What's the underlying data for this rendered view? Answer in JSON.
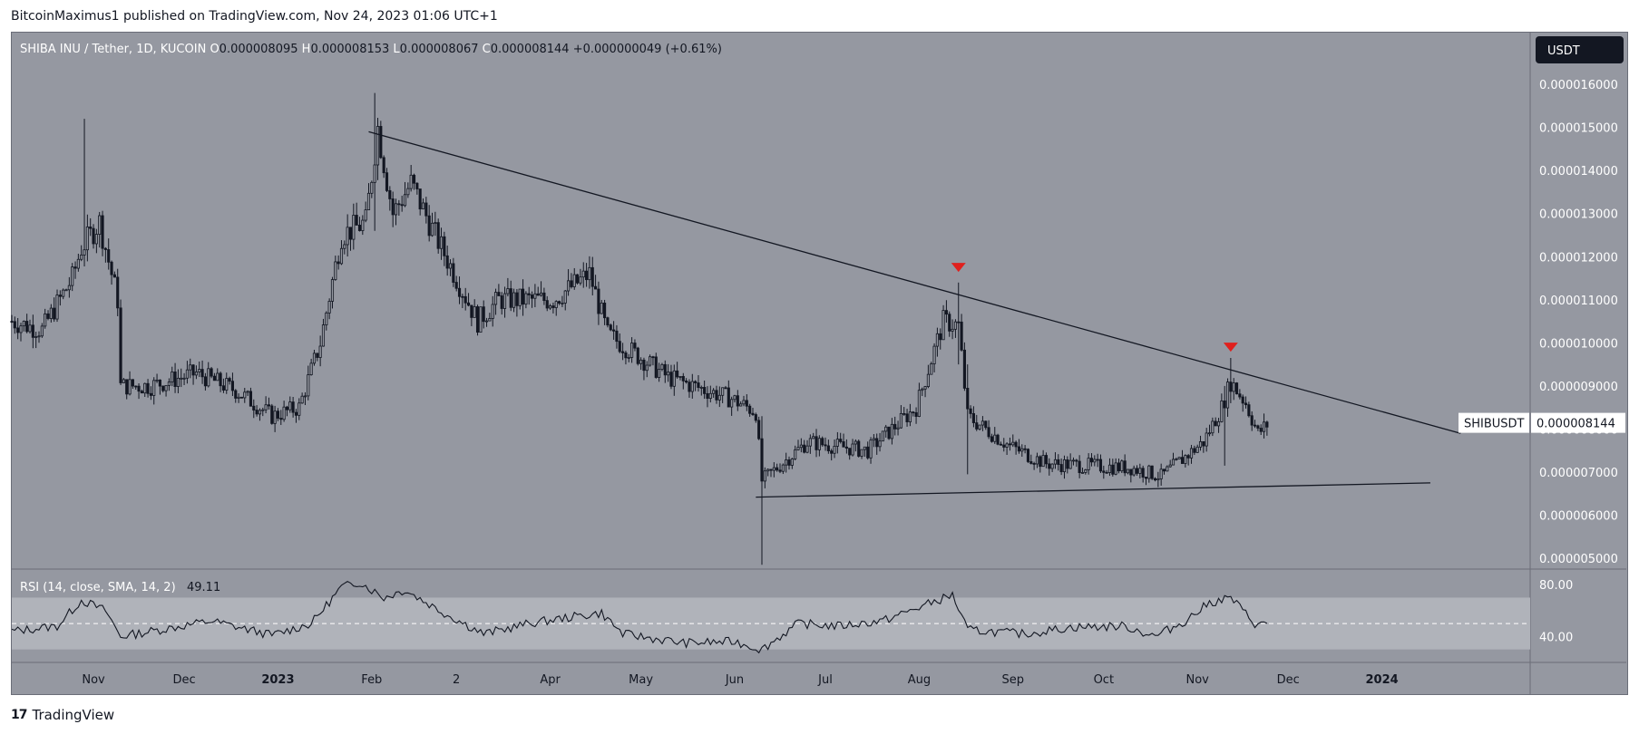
{
  "header": {
    "published": "BitcoinMaximus1 published on TradingView.com, Nov 24, 2023 01:06 UTC+1"
  },
  "legend": {
    "symbol": "SHIBA INU / Tether, 1D, KUCOIN",
    "o_label": "O",
    "o_value": "0.000008095",
    "h_label": "H",
    "h_value": "0.000008153",
    "l_label": "L",
    "l_value": "0.000008067",
    "c_label": "C",
    "c_value": "0.000008144",
    "change": "+0.000000049 (+0.61%)"
  },
  "currency_button": "USDT",
  "price_tag": {
    "symbol": "SHIBUSDT",
    "value": "0.000008144"
  },
  "rsi": {
    "label": "RSI (14, close, SMA, 14, 2)",
    "value": "49.11",
    "ticks": [
      "80.00",
      "40.00"
    ]
  },
  "footer": {
    "brand": "TradingView"
  },
  "colors": {
    "background": "#9598a1",
    "candle": "#131722",
    "marker": "#e0201d",
    "rsi_band": "#b0b3ba"
  },
  "chart_data": [
    {
      "type": "candlestick",
      "series": [
        {
          "name": "SHIBUSDT"
        }
      ],
      "y_ticks": [
        "0.000016000",
        "0.000015000",
        "0.000014000",
        "0.000013000",
        "0.000012000",
        "0.000011000",
        "0.000010000",
        "0.000009000",
        "0.000008000",
        "0.000007000",
        "0.000006000",
        "0.000005000"
      ],
      "y_tick_values": [
        16,
        15,
        14,
        13,
        12,
        11,
        10,
        9,
        8,
        7,
        6,
        5
      ],
      "ylim": [
        4.75,
        17.2
      ],
      "x_ticks": [
        "Nov",
        "Dec",
        "2023",
        "Feb",
        "2",
        "Apr",
        "May",
        "Jun",
        "Jul",
        "Aug",
        "Sep",
        "Oct",
        "Nov",
        "Dec",
        "2024"
      ],
      "x_tick_dates": [
        "2022-11-01",
        "2022-12-01",
        "2023-01-01",
        "2023-02-01",
        "2023-03-01",
        "2023-04-01",
        "2023-05-01",
        "2023-06-01",
        "2023-07-01",
        "2023-08-01",
        "2023-09-01",
        "2023-10-01",
        "2023-11-01",
        "2023-12-01",
        "2024-01-01"
      ],
      "xlim": [
        "2022-10-05",
        "2024-02-19"
      ],
      "price_path": [
        [
          "2022-10-05",
          10.5
        ],
        [
          "2022-10-15",
          10.3
        ],
        [
          "2022-10-25",
          11.5
        ],
        [
          "2022-10-28",
          12.2
        ],
        [
          "2022-11-03",
          12.8
        ],
        [
          "2022-11-09",
          11.0
        ],
        [
          "2022-11-10",
          9.0
        ],
        [
          "2022-11-20",
          9.0
        ],
        [
          "2022-12-05",
          9.3
        ],
        [
          "2022-12-18",
          8.9
        ],
        [
          "2022-12-30",
          8.3
        ],
        [
          "2023-01-08",
          8.5
        ],
        [
          "2023-01-15",
          10.0
        ],
        [
          "2023-01-22",
          12.5
        ],
        [
          "2023-01-30",
          12.8
        ],
        [
          "2023-02-03",
          15.0
        ],
        [
          "2023-02-08",
          13.0
        ],
        [
          "2023-02-14",
          13.7
        ],
        [
          "2023-02-22",
          12.5
        ],
        [
          "2023-03-08",
          10.5
        ],
        [
          "2023-03-15",
          11.0
        ],
        [
          "2023-04-02",
          11.0
        ],
        [
          "2023-04-14",
          11.6
        ],
        [
          "2023-04-20",
          10.2
        ],
        [
          "2023-05-10",
          9.2
        ],
        [
          "2023-05-31",
          8.7
        ],
        [
          "2023-06-08",
          8.4
        ],
        [
          "2023-06-10",
          6.8
        ],
        [
          "2023-06-25",
          7.7
        ],
        [
          "2023-07-15",
          7.5
        ],
        [
          "2023-07-31",
          8.5
        ],
        [
          "2023-08-09",
          10.5
        ],
        [
          "2023-08-14",
          10.4
        ],
        [
          "2023-08-17",
          8.3
        ],
        [
          "2023-08-31",
          7.6
        ],
        [
          "2023-09-12",
          7.2
        ],
        [
          "2023-10-10",
          7.1
        ],
        [
          "2023-10-20",
          6.9
        ],
        [
          "2023-11-03",
          7.7
        ],
        [
          "2023-11-09",
          8.5
        ],
        [
          "2023-11-12",
          9.1
        ],
        [
          "2023-11-17",
          8.6
        ],
        [
          "2023-11-21",
          7.9
        ],
        [
          "2023-11-24",
          8.1
        ]
      ],
      "price_noise": 0.25,
      "spikes": [
        {
          "date": "2022-10-29",
          "high": 15.2,
          "low": 11.8
        },
        {
          "date": "2023-02-02",
          "high": 15.8,
          "low": 12.6
        },
        {
          "date": "2023-06-10",
          "high": 8.3,
          "low": 4.85
        },
        {
          "date": "2023-08-14",
          "high": 11.4,
          "low": 9.5
        },
        {
          "date": "2023-08-17",
          "high": 9.5,
          "low": 6.95
        },
        {
          "date": "2023-11-12",
          "high": 9.65,
          "low": 8.6
        },
        {
          "date": "2023-11-10",
          "high": 9.0,
          "low": 7.15
        }
      ],
      "trendlines": [
        {
          "name": "descending-resistance",
          "from": [
            "2023-01-31",
            14.9
          ],
          "to": [
            "2024-01-27",
            7.9
          ]
        },
        {
          "name": "ascending-support",
          "from": [
            "2023-06-08",
            6.42
          ],
          "to": [
            "2024-01-17",
            6.75
          ]
        }
      ],
      "markers": [
        {
          "date": "2023-08-14",
          "price": 11.75,
          "shape": "down-triangle",
          "color": "#e0201d"
        },
        {
          "date": "2023-11-12",
          "price": 9.9,
          "shape": "down-triangle",
          "color": "#e0201d"
        }
      ]
    },
    {
      "type": "line",
      "name": "RSI",
      "series": [
        {
          "name": "RSI (14, close, SMA, 14, 2)"
        }
      ],
      "ylim": [
        20,
        92
      ],
      "y_tick_values": [
        80,
        40
      ],
      "band": [
        30,
        70
      ],
      "midline": 50,
      "rsi_path": [
        [
          "2022-10-05",
          44
        ],
        [
          "2022-10-20",
          48
        ],
        [
          "2022-10-28",
          68
        ],
        [
          "2022-11-05",
          60
        ],
        [
          "2022-11-10",
          40
        ],
        [
          "2022-11-25",
          46
        ],
        [
          "2022-12-10",
          52
        ],
        [
          "2022-12-30",
          41
        ],
        [
          "2023-01-12",
          50
        ],
        [
          "2023-01-22",
          78
        ],
        [
          "2023-01-28",
          82
        ],
        [
          "2023-02-05",
          70
        ],
        [
          "2023-02-12",
          76
        ],
        [
          "2023-02-25",
          58
        ],
        [
          "2023-03-10",
          42
        ],
        [
          "2023-03-25",
          50
        ],
        [
          "2023-04-08",
          55
        ],
        [
          "2023-04-18",
          58
        ],
        [
          "2023-04-25",
          42
        ],
        [
          "2023-05-15",
          35
        ],
        [
          "2023-06-01",
          36
        ],
        [
          "2023-06-10",
          30
        ],
        [
          "2023-06-22",
          50
        ],
        [
          "2023-07-05",
          48
        ],
        [
          "2023-07-20",
          52
        ],
        [
          "2023-08-05",
          66
        ],
        [
          "2023-08-12",
          72
        ],
        [
          "2023-08-17",
          45
        ],
        [
          "2023-09-05",
          42
        ],
        [
          "2023-09-20",
          47
        ],
        [
          "2023-10-08",
          48
        ],
        [
          "2023-10-18",
          40
        ],
        [
          "2023-10-28",
          52
        ],
        [
          "2023-11-05",
          66
        ],
        [
          "2023-11-12",
          70
        ],
        [
          "2023-11-20",
          50
        ],
        [
          "2023-11-24",
          49
        ]
      ],
      "rsi_noise": 3.5
    }
  ]
}
